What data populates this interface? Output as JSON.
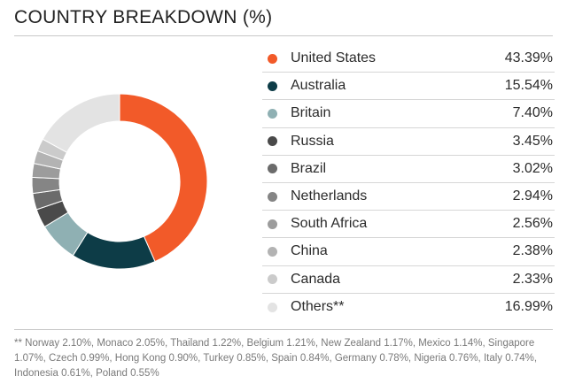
{
  "title": "COUNTRY BREAKDOWN (%)",
  "chart_data": {
    "type": "pie",
    "title": "COUNTRY BREAKDOWN (%)",
    "categories": [
      "United States",
      "Australia",
      "Britain",
      "Russia",
      "Brazil",
      "Netherlands",
      "South Africa",
      "China",
      "Canada",
      "Others**"
    ],
    "values": [
      43.39,
      15.54,
      7.4,
      3.45,
      3.02,
      2.94,
      2.56,
      2.38,
      2.33,
      16.99
    ],
    "labels": [
      "43.39%",
      "15.54%",
      "7.40%",
      "3.45%",
      "3.02%",
      "2.94%",
      "2.56%",
      "2.38%",
      "2.33%",
      "16.99%"
    ],
    "colors": [
      "#f25a29",
      "#0d3c47",
      "#8fb0b3",
      "#4a4a4a",
      "#6b6b6b",
      "#858585",
      "#9c9c9c",
      "#b3b3b3",
      "#cbcbcb",
      "#e3e3e3"
    ],
    "legend_position": "right"
  },
  "footnote": "** Norway 2.10%, Monaco 2.05%, Thailand 1.22%, Belgium 1.21%, New Zealand 1.17%, Mexico 1.14%, Singapore 1.07%, Czech 0.99%, Hong Kong 0.90%, Turkey 0.85%, Spain 0.84%, Germany 0.78%, Nigeria 0.76%, Italy 0.74%, Indonesia 0.61%, Poland 0.55%"
}
